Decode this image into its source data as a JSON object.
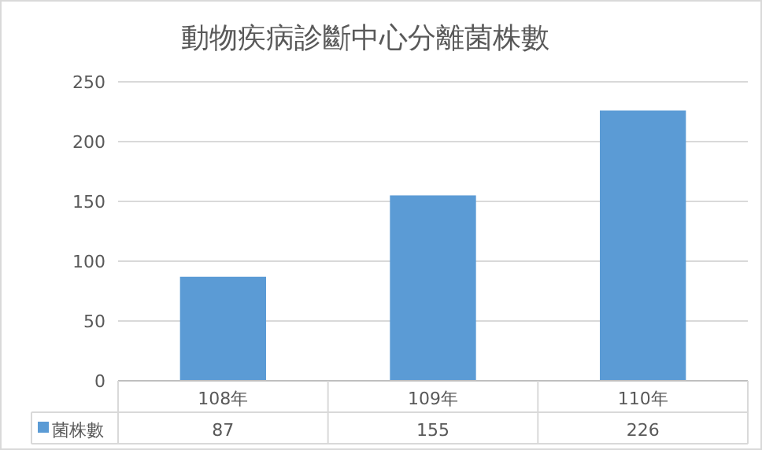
{
  "chart_data": {
    "type": "bar",
    "title": "動物疾病診斷中心分離菌株數",
    "categories": [
      "108年",
      "109年",
      "110年"
    ],
    "series": [
      {
        "name": "菌株數",
        "color": "#5b9bd5",
        "values": [
          87,
          155,
          226
        ]
      }
    ],
    "ylim": [
      0,
      250
    ],
    "yticks": [
      0,
      50,
      100,
      150,
      200,
      250
    ],
    "grid": "y",
    "data_labels": true,
    "legend": "bottom"
  }
}
